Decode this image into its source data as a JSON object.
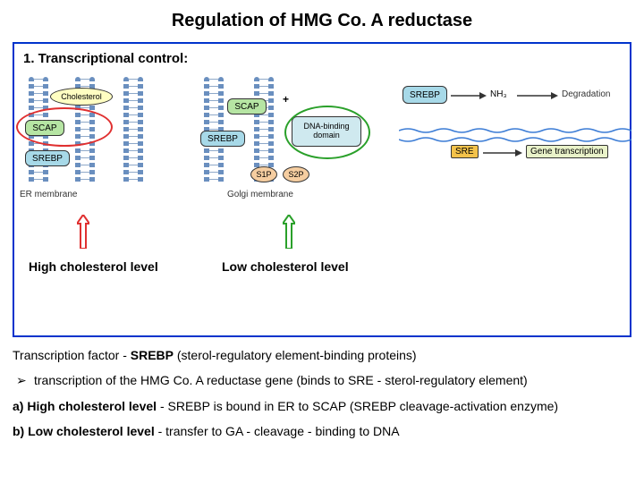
{
  "title": "Regulation of HMG Co. A reductase",
  "section_title": "1. Transcriptional control:",
  "panel1": {
    "label": "High cholesterol level",
    "membrane_label": "ER membrane",
    "scap": "SCAP",
    "srebp": "SREBP",
    "cholesterol": "Cholesterol",
    "circle_color": "#e03030"
  },
  "panel2": {
    "label": "Low cholesterol level",
    "membrane_label": "Golgi membrane",
    "scap": "SCAP",
    "srebp": "SREBP",
    "dna_binding": "DNA-binding\ndomain",
    "s1p": "S1P",
    "s2p": "S2P",
    "circle_color": "#2aa02a"
  },
  "panel3": {
    "srebp": "SREBP",
    "nh3": "NH₃",
    "degradation": "Degradation",
    "sre": "SRE",
    "gene": "Gene transcription"
  },
  "colors": {
    "scap_bg": "#b6e5a3",
    "srebp_bg": "#a7d9e8",
    "dna_bg": "#cfe9ef",
    "s1p_bg": "#f5cda0",
    "s2p_bg": "#f5cda0",
    "chol_bg": "#fffec2",
    "border_box": "#0033cc",
    "helix_color": "#3a7bd5",
    "membrane_color": "#6a8fbf"
  },
  "text": {
    "tf_line": "Transcription factor - SREBP (sterol-regulatory element-binding proteins)",
    "bullet1": "transcription of the HMG Co. A reductase gene (binds to SRE - sterol-regulatory element)",
    "item_a_bold": "a)  High cholesterol level",
    "item_a_rest": " - SREBP is bound in ER to SCAP (SREBP cleavage-activation enzyme)",
    "item_b_bold": "b)  Low cholesterol level",
    "item_b_rest": " - transfer to GA - cleavage - binding to DNA"
  }
}
